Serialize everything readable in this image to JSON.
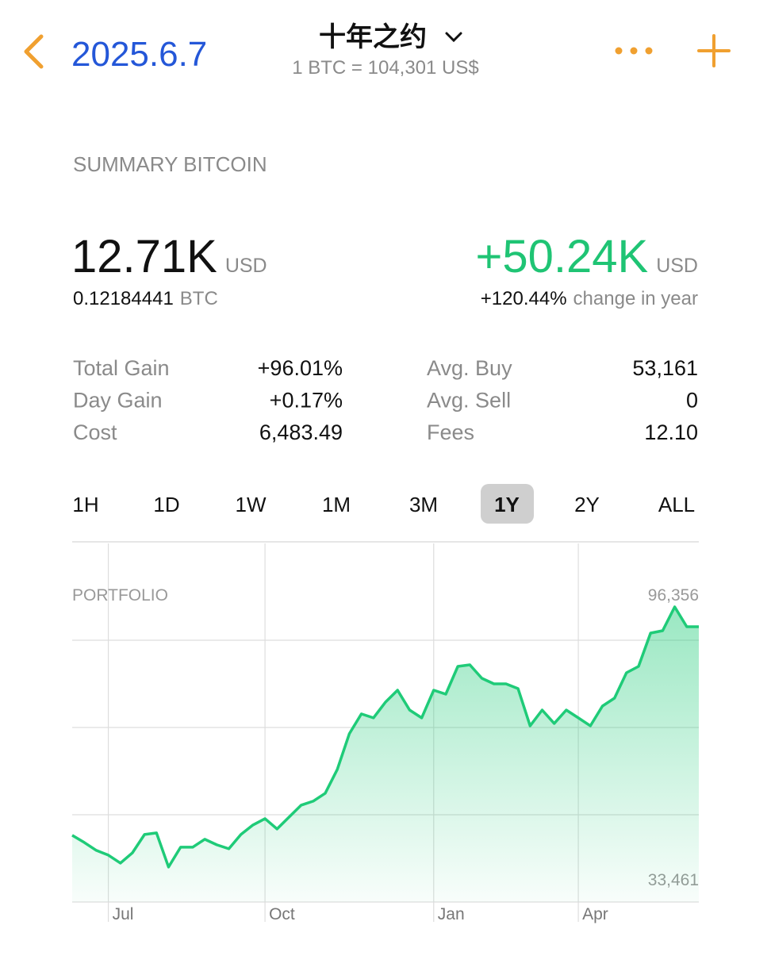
{
  "header": {
    "date": "2025.6.7",
    "title": "十年之约",
    "subtitle": "1 BTC = 104,301 US$"
  },
  "summary": {
    "heading": "SUMMARY BITCOIN",
    "value": "12.71K",
    "value_unit": "USD",
    "btc": "0.12184441",
    "btc_unit": "BTC",
    "change": "+50.24K",
    "change_unit": "USD",
    "change_pct": "+120.44%",
    "change_label": "change in year"
  },
  "stats": {
    "rows": [
      [
        "Total Gain",
        "+96.01%",
        "Avg. Buy",
        "53,161"
      ],
      [
        "Day Gain",
        "+0.17%",
        "Avg. Sell",
        "0"
      ],
      [
        "Cost",
        "6,483.49",
        "Fees",
        "12.10"
      ]
    ]
  },
  "ranges": {
    "items": [
      "1H",
      "1D",
      "1W",
      "1M",
      "3M",
      "1Y",
      "2Y",
      "ALL"
    ],
    "selected": 5
  },
  "chart_data": {
    "type": "line",
    "title": "PORTFOLIO",
    "color": "#1fcb78",
    "categories": [
      null,
      null,
      null,
      "Jul",
      null,
      null,
      null,
      null,
      null,
      null,
      null,
      null,
      null,
      null,
      null,
      null,
      "Oct",
      null,
      null,
      null,
      null,
      null,
      null,
      null,
      null,
      null,
      null,
      null,
      null,
      null,
      "Jan",
      null,
      null,
      null,
      null,
      null,
      null,
      null,
      null,
      null,
      null,
      null,
      "Apr",
      null,
      null,
      null,
      null,
      null,
      null,
      null,
      null,
      null,
      null
    ],
    "values": [
      41132,
      39406,
      37489,
      36338,
      34421,
      36913,
      41324,
      41707,
      33461,
      38256,
      38256,
      40173,
      38831,
      37872,
      41324,
      43625,
      45159,
      42666,
      45542,
      48418,
      49377,
      51295,
      57047,
      65676,
      70470,
      69511,
      73346,
      76222,
      71428,
      69511,
      76222,
      75263,
      81975,
      82358,
      79098,
      77756,
      77756,
      76606,
      67593,
      71428,
      68169,
      71428,
      69511,
      67593,
      72387,
      74305,
      80441,
      81975,
      90028,
      90603,
      96356,
      91562,
      91562
    ],
    "ylim": [
      25000,
      111700
    ],
    "annotations": [
      {
        "value": 96356,
        "label": "96,356"
      },
      {
        "value": 33461,
        "label": "33,461"
      }
    ]
  }
}
